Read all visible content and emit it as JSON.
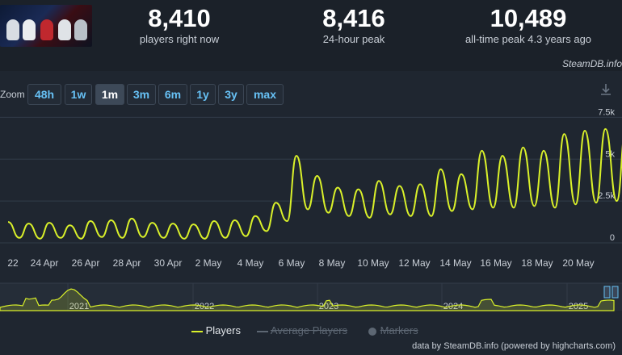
{
  "stats": [
    {
      "value": "8,410",
      "label": "players right now"
    },
    {
      "value": "8,416",
      "label": "24-hour peak"
    },
    {
      "value": "10,489",
      "label": "all-time peak 4.3 years ago"
    }
  ],
  "credit_top": "SteamDB.info",
  "zoom": {
    "label": "Zoom",
    "buttons": [
      "48h",
      "1w",
      "1m",
      "3m",
      "6m",
      "1y",
      "3y",
      "max"
    ],
    "active": "1m"
  },
  "legend": {
    "players": "Players",
    "average": "Average Players",
    "markers": "Markers"
  },
  "credit_bottom": "data by SteamDB.info (powered by highcharts.com)",
  "colors": {
    "series": "#d9f02a",
    "background": "#1f2630",
    "grid": "#323c49",
    "accent": "#67c1f5"
  },
  "icons": {
    "download": "download-icon"
  },
  "chart_data": {
    "type": "line",
    "series": [
      {
        "name": "Players"
      }
    ],
    "x_labels": [
      "22",
      "24 Apr",
      "26 Apr",
      "28 Apr",
      "30 Apr",
      "2 May",
      "4 May",
      "6 May",
      "8 May",
      "10 May",
      "12 May",
      "14 May",
      "16 May",
      "18 May",
      "20 May"
    ],
    "y_ticks": [
      "0",
      "2.5k",
      "5k",
      "7.5k"
    ],
    "ylim": [
      0,
      8000
    ],
    "daily_peaks": [
      1250,
      1150,
      1200,
      1050,
      1300,
      1350,
      1450,
      1200,
      1150,
      1100,
      1300,
      1350,
      1600,
      2400,
      5200,
      4000,
      3300,
      3200,
      3700,
      3400,
      3500,
      4400,
      4100,
      5500,
      5200,
      5700,
      5500,
      6500,
      6700,
      6800,
      6900,
      7400,
      7000,
      7600,
      6900,
      6000,
      7800
    ],
    "daily_troughs": [
      300,
      250,
      300,
      250,
      350,
      300,
      350,
      300,
      250,
      250,
      300,
      400,
      700,
      1300,
      2000,
      1800,
      1600,
      1500,
      1700,
      1600,
      1600,
      1900,
      2000,
      2100,
      2100,
      2200,
      2100,
      2300,
      2400,
      2500,
      2500,
      2600,
      2500,
      2700,
      2600,
      2800
    ],
    "last_value": 8410,
    "navigator": {
      "x_labels": [
        "2021",
        "2022",
        "2023",
        "2024",
        "2025"
      ]
    }
  }
}
